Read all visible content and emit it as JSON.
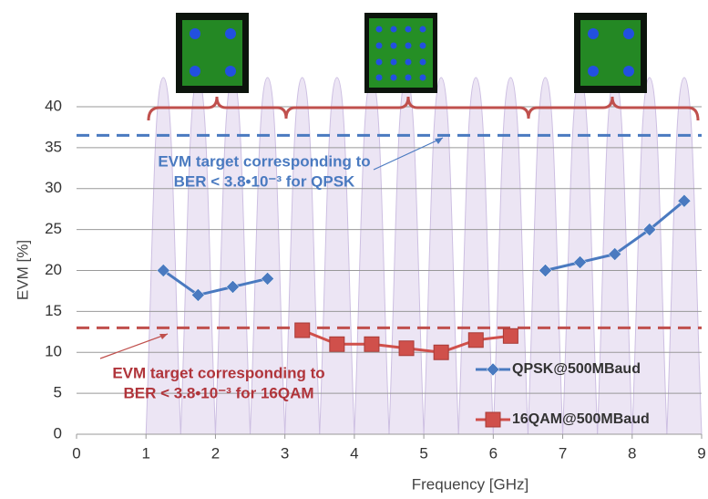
{
  "chart_data": {
    "type": "line",
    "x": [
      1.25,
      1.75,
      2.25,
      2.75,
      3.25,
      3.75,
      4.25,
      4.75,
      5.25,
      5.75,
      6.25,
      6.75,
      7.25,
      7.75,
      8.25,
      8.75
    ],
    "series": [
      {
        "name": "QPSK@500MBaud",
        "color": "#4a7ac0",
        "marker": "diamond",
        "values": [
          20,
          17,
          18,
          19,
          null,
          null,
          null,
          null,
          null,
          null,
          null,
          20,
          21,
          22,
          25,
          28.5
        ]
      },
      {
        "name": "16QAM@500MBaud",
        "color": "#d0504b",
        "marker": "square",
        "values": [
          null,
          null,
          null,
          null,
          12.7,
          11,
          11,
          10.5,
          10,
          11.5,
          12,
          null,
          null,
          null,
          null,
          null
        ]
      }
    ],
    "xlabel": "Frequency  [GHz]",
    "ylabel": "EVM [%]",
    "xlim": [
      0,
      9
    ],
    "xticks": [
      0,
      1,
      2,
      3,
      4,
      5,
      6,
      7,
      8,
      9
    ],
    "ylim": [
      0,
      40
    ],
    "yticks": [
      0,
      5,
      10,
      15,
      20,
      25,
      30,
      35,
      40
    ],
    "grid": true,
    "legend": "lower right",
    "reference_lines": [
      {
        "value": 36.5,
        "color": "#4a7ac0",
        "label": [
          "EVM target corresponding to",
          "BER  < 3.8•10⁻³ for QPSK"
        ]
      },
      {
        "value": 13,
        "color": "#c0504d",
        "label": [
          "EVM target corresponding to",
          "BER  < 3.8•10⁻³ for 16QAM"
        ]
      }
    ]
  }
}
